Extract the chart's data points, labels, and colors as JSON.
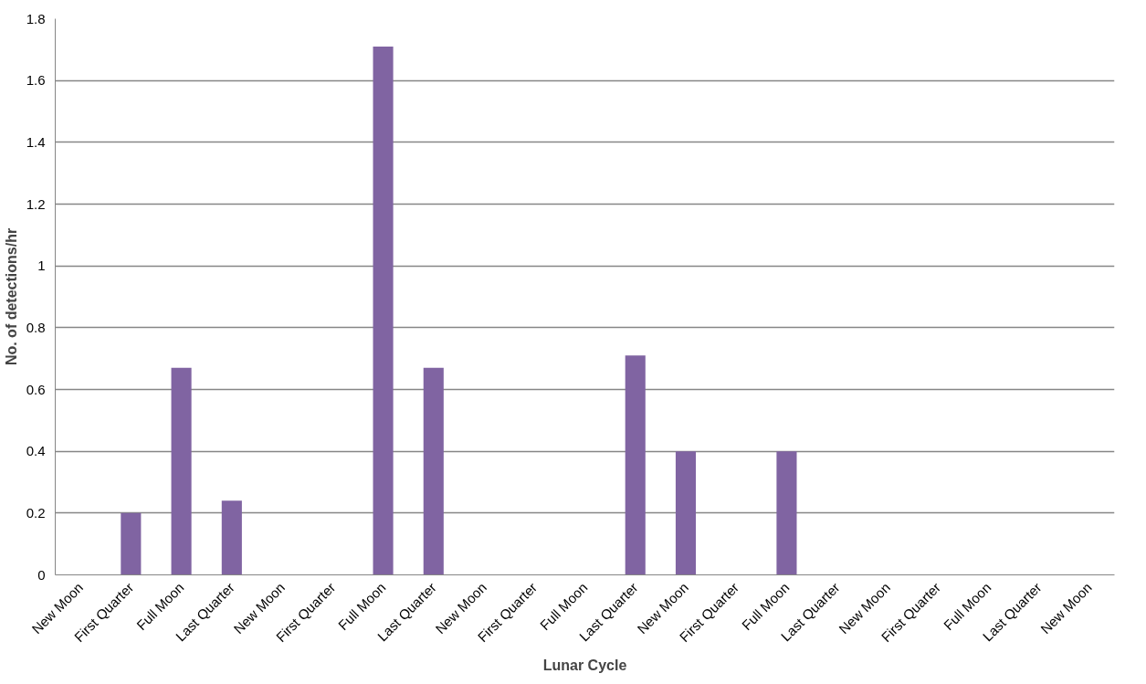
{
  "chart_data": {
    "type": "bar",
    "xlabel": "Lunar Cycle",
    "ylabel": "No. of detections/hr",
    "categories": [
      "New Moon",
      "First Quarter",
      "Full Moon",
      "Last Quarter",
      "New Moon",
      "First Quarter",
      "Full Moon",
      "Last Quarter",
      "New Moon",
      "First Quarter",
      "Full Moon",
      "Last Quarter",
      "New Moon",
      "First Quarter",
      "Full Moon",
      "Last Quarter",
      "New Moon",
      "First Quarter",
      "Full Moon",
      "Last Quarter",
      "New Moon"
    ],
    "values": [
      0,
      0.2,
      0.67,
      0.24,
      0,
      0,
      1.71,
      0.67,
      0,
      0,
      0,
      0.71,
      0.4,
      0,
      0.4,
      0,
      0,
      0,
      0,
      0,
      0
    ],
    "color": "#8064a2",
    "ylim": [
      0,
      1.8
    ],
    "yticks": [
      0,
      0.2,
      0.4,
      0.6,
      0.8,
      1,
      1.2,
      1.4,
      1.6,
      1.8
    ],
    "grid": "y"
  }
}
